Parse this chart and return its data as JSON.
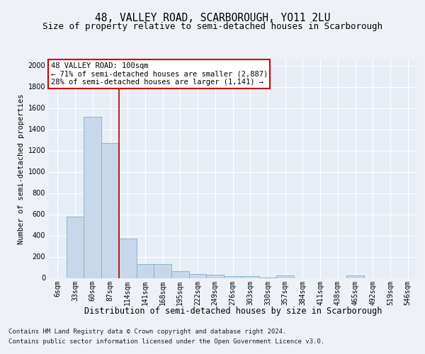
{
  "title": "48, VALLEY ROAD, SCARBOROUGH, YO11 2LU",
  "subtitle": "Size of property relative to semi-detached houses in Scarborough",
  "xlabel": "Distribution of semi-detached houses by size in Scarborough",
  "ylabel": "Number of semi-detached properties",
  "footer_line1": "Contains HM Land Registry data © Crown copyright and database right 2024.",
  "footer_line2": "Contains public sector information licensed under the Open Government Licence v3.0.",
  "categories": [
    "6sqm",
    "33sqm",
    "60sqm",
    "87sqm",
    "114sqm",
    "141sqm",
    "168sqm",
    "195sqm",
    "222sqm",
    "249sqm",
    "276sqm",
    "303sqm",
    "330sqm",
    "357sqm",
    "384sqm",
    "411sqm",
    "438sqm",
    "465sqm",
    "492sqm",
    "519sqm",
    "546sqm"
  ],
  "values": [
    0,
    580,
    1520,
    1270,
    370,
    130,
    130,
    65,
    38,
    30,
    20,
    15,
    5,
    25,
    0,
    0,
    0,
    25,
    0,
    0,
    0
  ],
  "bar_color": "#c8d8ea",
  "bar_edge_color": "#7eaecb",
  "red_line_x": 3.5,
  "red_line_color": "#aa0000",
  "annotation_title": "48 VALLEY ROAD: 100sqm",
  "annotation_line1": "← 71% of semi-detached houses are smaller (2,887)",
  "annotation_line2": "28% of semi-detached houses are larger (1,141) →",
  "annotation_box_facecolor": "#ffffff",
  "annotation_box_edgecolor": "#cc0000",
  "ylim": [
    0,
    2050
  ],
  "yticks": [
    0,
    200,
    400,
    600,
    800,
    1000,
    1200,
    1400,
    1600,
    1800,
    2000
  ],
  "bg_color": "#eef2f7",
  "plot_bg_color": "#e8eef5",
  "grid_color": "#ffffff",
  "title_fontsize": 10.5,
  "subtitle_fontsize": 9,
  "xlabel_fontsize": 8.5,
  "ylabel_fontsize": 7.5,
  "tick_fontsize": 7,
  "annotation_fontsize": 7.5,
  "footer_fontsize": 6.5
}
